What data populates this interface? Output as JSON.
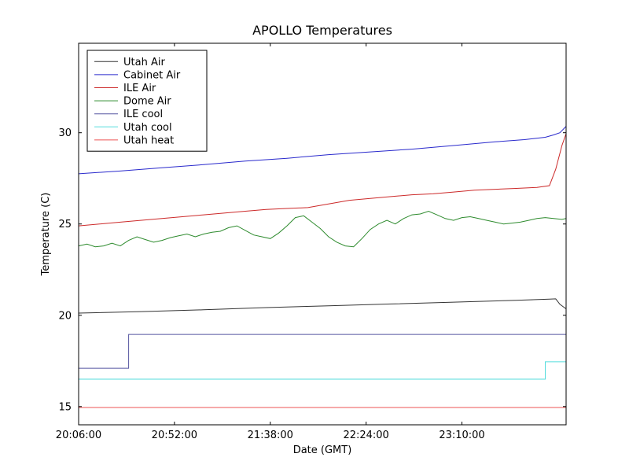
{
  "figure": {
    "background": "#ffffff"
  },
  "chart_data": {
    "type": "line",
    "title": "APOLLO Temperatures",
    "xlabel": "Date (GMT)",
    "ylabel": "Temperature (C)",
    "x_unit": "minutes since 20:06:00 GMT",
    "xlim": [
      0,
      234
    ],
    "ylim": [
      14.0,
      34.9
    ],
    "grid": false,
    "legend_position": "upper left",
    "xticks": [
      {
        "value": 0,
        "label": "20:06:00"
      },
      {
        "value": 46,
        "label": "20:52:00"
      },
      {
        "value": 92,
        "label": "21:38:00"
      },
      {
        "value": 138,
        "label": "22:24:00"
      },
      {
        "value": 184,
        "label": "23:10:00"
      }
    ],
    "yticks": [
      {
        "value": 15,
        "label": "15"
      },
      {
        "value": 20,
        "label": "20"
      },
      {
        "value": 25,
        "label": "25"
      },
      {
        "value": 30,
        "label": "30"
      }
    ],
    "series": [
      {
        "name": "Utah Air",
        "color": "#333333",
        "x": [
          0,
          30,
          60,
          90,
          120,
          150,
          180,
          210,
          226,
          229,
          231,
          234
        ],
        "y": [
          20.12,
          20.2,
          20.3,
          20.42,
          20.52,
          20.62,
          20.72,
          20.82,
          20.88,
          20.9,
          20.6,
          20.35
        ]
      },
      {
        "name": "Cabinet Air",
        "color": "#2929cc",
        "x": [
          0,
          20,
          40,
          60,
          80,
          100,
          120,
          140,
          160,
          180,
          200,
          214,
          224,
          228,
          231,
          234
        ],
        "y": [
          27.75,
          27.9,
          28.08,
          28.25,
          28.45,
          28.6,
          28.8,
          28.95,
          29.1,
          29.3,
          29.5,
          29.62,
          29.75,
          29.88,
          30.0,
          30.35
        ]
      },
      {
        "name": "ILE Air",
        "color": "#cc2929",
        "x": [
          0,
          20,
          40,
          60,
          80,
          90,
          100,
          110,
          120,
          130,
          140,
          150,
          160,
          170,
          180,
          190,
          200,
          210,
          220,
          226,
          229,
          232,
          234
        ],
        "y": [
          24.9,
          25.1,
          25.3,
          25.5,
          25.7,
          25.8,
          25.85,
          25.9,
          26.1,
          26.3,
          26.4,
          26.5,
          26.6,
          26.65,
          26.75,
          26.85,
          26.9,
          26.95,
          27.0,
          27.1,
          28.0,
          29.3,
          29.95
        ]
      },
      {
        "name": "Dome Air",
        "color": "#2e8b2e",
        "x": [
          0,
          4,
          8,
          12,
          16,
          20,
          24,
          28,
          32,
          36,
          40,
          44,
          48,
          52,
          56,
          60,
          64,
          68,
          72,
          76,
          80,
          84,
          88,
          92,
          96,
          100,
          104,
          108,
          112,
          116,
          120,
          124,
          128,
          132,
          136,
          140,
          144,
          148,
          152,
          156,
          160,
          164,
          168,
          172,
          176,
          180,
          184,
          188,
          192,
          196,
          200,
          204,
          208,
          212,
          216,
          220,
          224,
          228,
          232,
          234
        ],
        "y": [
          23.8,
          23.9,
          23.75,
          23.8,
          23.95,
          23.8,
          24.1,
          24.3,
          24.15,
          24.0,
          24.1,
          24.25,
          24.35,
          24.45,
          24.3,
          24.45,
          24.55,
          24.6,
          24.8,
          24.9,
          24.65,
          24.4,
          24.3,
          24.2,
          24.5,
          24.9,
          25.35,
          25.45,
          25.1,
          24.75,
          24.3,
          24.0,
          23.8,
          23.75,
          24.2,
          24.7,
          25.0,
          25.2,
          25.0,
          25.3,
          25.5,
          25.55,
          25.7,
          25.5,
          25.3,
          25.2,
          25.35,
          25.4,
          25.3,
          25.2,
          25.1,
          25.0,
          25.05,
          25.1,
          25.2,
          25.3,
          25.35,
          25.3,
          25.25,
          25.3
        ]
      },
      {
        "name": "ILE cool",
        "color": "#5555a0",
        "x": [
          0,
          24,
          24,
          234
        ],
        "y": [
          17.1,
          17.1,
          18.95,
          18.95
        ]
      },
      {
        "name": "Utah cool",
        "color": "#55dddd",
        "x": [
          0,
          224,
          224,
          234
        ],
        "y": [
          16.5,
          16.5,
          17.45,
          17.45
        ]
      },
      {
        "name": "Utah heat",
        "color": "#ee5555",
        "x": [
          0,
          234
        ],
        "y": [
          14.95,
          14.95
        ]
      }
    ]
  }
}
